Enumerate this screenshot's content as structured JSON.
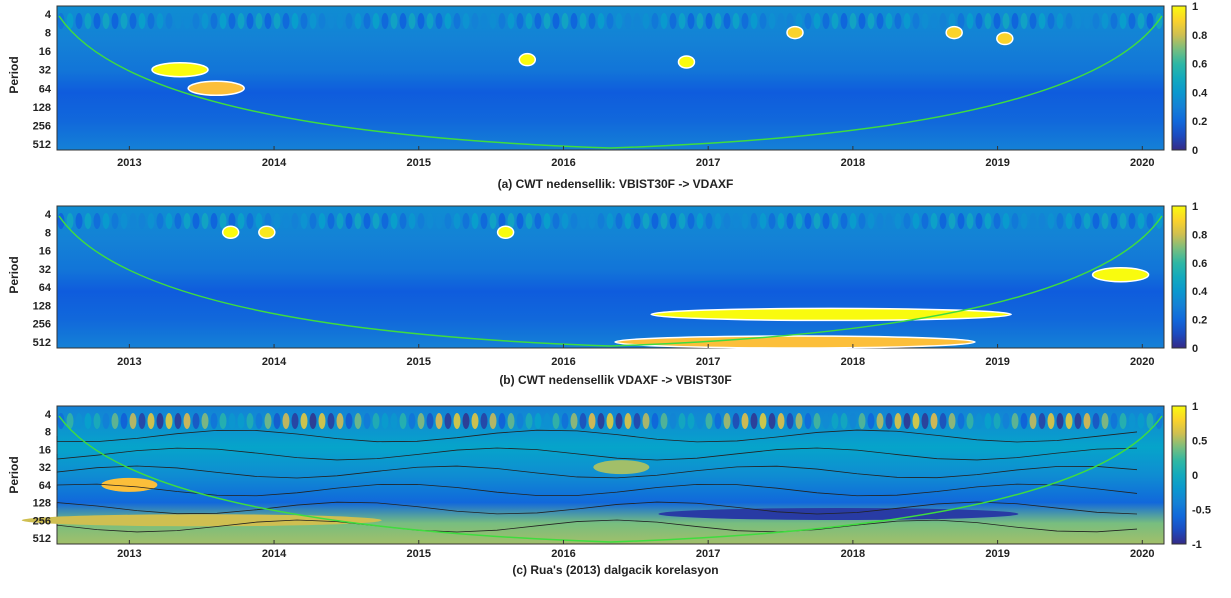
{
  "chart_data": [
    {
      "type": "heatmap",
      "caption": "(a)  CWT nedensellik: VBIST30F -> VDAXF",
      "ylabel": "Period",
      "yticks": [
        "4",
        "8",
        "16",
        "32",
        "64",
        "128",
        "256",
        "512"
      ],
      "xticks": [
        "2013",
        "2014",
        "2015",
        "2016",
        "2017",
        "2018",
        "2019",
        "2020"
      ],
      "xlim": [
        2012.5,
        2020.15
      ],
      "colorbar": {
        "ticks": [
          "0",
          "0.2",
          "0.4",
          "0.6",
          "0.8",
          "1"
        ],
        "range": [
          0,
          1
        ]
      },
      "significant_regions": [
        {
          "year": 2013.35,
          "period": 32,
          "value": 1.0
        },
        {
          "year": 2013.6,
          "period": 64,
          "value": 0.85
        },
        {
          "year": 2015.75,
          "period": 22,
          "value": 1.0
        },
        {
          "year": 2016.85,
          "period": 24,
          "value": 1.0
        },
        {
          "year": 2017.6,
          "period": 8,
          "value": 0.9
        },
        {
          "year": 2018.7,
          "period": 8,
          "value": 0.9
        },
        {
          "year": 2019.05,
          "period": 10,
          "value": 0.9
        }
      ]
    },
    {
      "type": "heatmap",
      "caption": "(b)  CWT nedensellik VDAXF -> VBIST30F",
      "ylabel": "Period",
      "yticks": [
        "4",
        "8",
        "16",
        "32",
        "64",
        "128",
        "256",
        "512"
      ],
      "xticks": [
        "2013",
        "2014",
        "2015",
        "2016",
        "2017",
        "2018",
        "2019",
        "2020"
      ],
      "xlim": [
        2012.5,
        2020.15
      ],
      "colorbar": {
        "ticks": [
          "0",
          "0.2",
          "0.4",
          "0.6",
          "0.8",
          "1"
        ],
        "range": [
          0,
          1
        ]
      },
      "significant_regions": [
        {
          "year": 2013.7,
          "period": 8,
          "value": 1.0
        },
        {
          "year": 2013.95,
          "period": 8,
          "value": 0.95
        },
        {
          "year": 2015.6,
          "period": 8,
          "value": 1.0
        },
        {
          "year": 2017.85,
          "period": 180,
          "value": 1.0
        },
        {
          "year": 2019.85,
          "period": 40,
          "value": 1.0
        },
        {
          "year": 2017.6,
          "period": 512,
          "value": 0.85
        }
      ]
    },
    {
      "type": "heatmap",
      "caption": "(c) Rua's (2013) dalgacik korelasyon",
      "ylabel": "Period",
      "yticks": [
        "4",
        "8",
        "16",
        "32",
        "64",
        "128",
        "256",
        "512"
      ],
      "xticks": [
        "2013",
        "2014",
        "2015",
        "2016",
        "2017",
        "2018",
        "2019",
        "2020"
      ],
      "xlim": [
        2012.5,
        2020.15
      ],
      "colorbar": {
        "ticks": [
          "1",
          "0.5",
          "0",
          "-0.5",
          "-1"
        ],
        "range": [
          -1,
          1
        ]
      },
      "significant_regions": [
        {
          "year": 2013.0,
          "period": 64,
          "value": 0.7
        },
        {
          "year": 2017.9,
          "period": 200,
          "value": -0.9
        },
        {
          "year": 2016.4,
          "period": 32,
          "value": 0.5
        },
        {
          "year": 2013.5,
          "period": 256,
          "value": 0.6
        }
      ]
    }
  ],
  "colors": {
    "low": "#352a87",
    "mid": "#21a8a8",
    "high": "#f9fb0e",
    "cone": "#3fdc3f",
    "contour": "#ffffff"
  }
}
